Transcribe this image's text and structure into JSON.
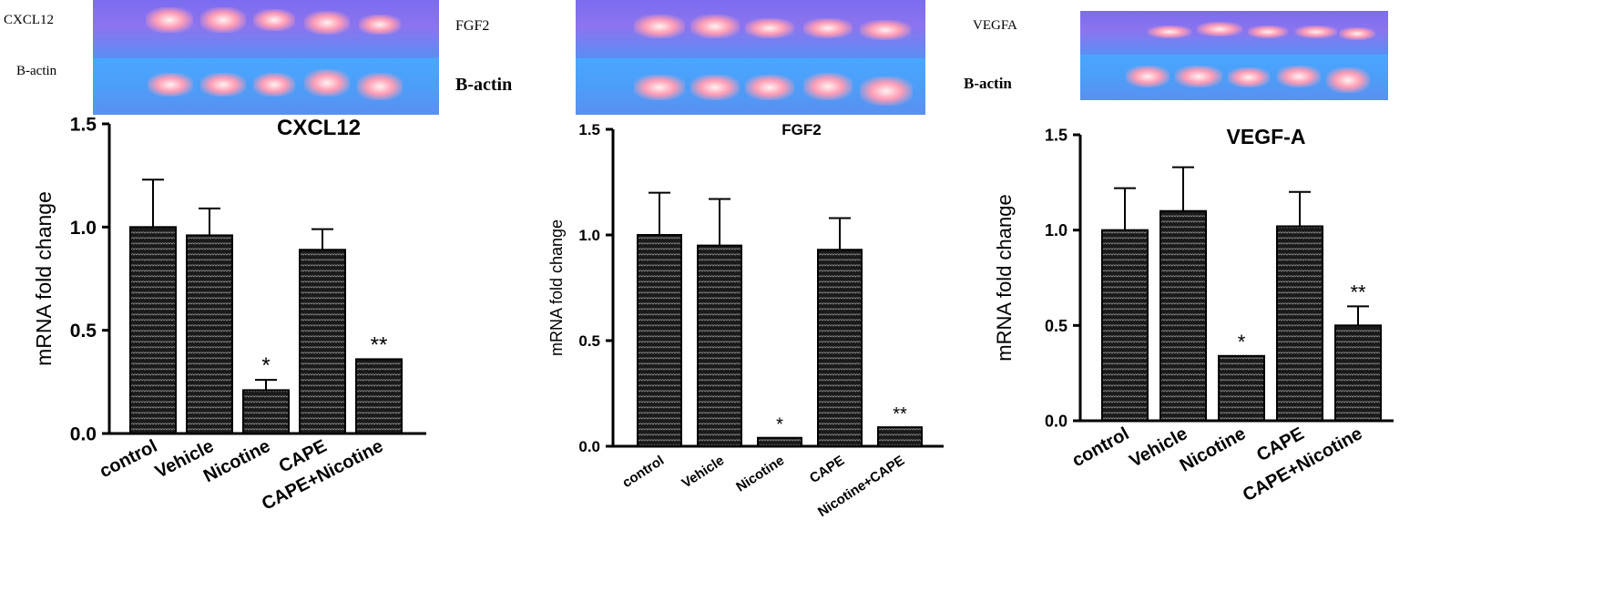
{
  "gels": [
    {
      "target_label": "CXCL12",
      "control_label": "B-actin"
    },
    {
      "target_label": "FGF2",
      "control_label": "B-actin"
    },
    {
      "target_label": "VEGFA",
      "control_label": "B-actin"
    }
  ],
  "colors": {
    "bar_fill": "#1a1a1a",
    "bar_pattern": "#9a9a9a",
    "axis": "#000000",
    "gel_top": "#8270ef",
    "gel_bottom": "#4aa6ff",
    "band": "#ffb0c8"
  },
  "chart_data": [
    {
      "type": "bar",
      "title": "CXCL12",
      "ylabel": "mRNA fold change",
      "xlabel": "",
      "ylim": [
        0,
        1.5
      ],
      "yticks": [
        "0.0",
        "0.5",
        "1.0",
        "1.5"
      ],
      "categories": [
        "control",
        "Vehicle",
        "Nicotine",
        "CAPE",
        "CAPE+Nicotine"
      ],
      "values": [
        1.0,
        0.96,
        0.21,
        0.89,
        0.36
      ],
      "errors": [
        0.23,
        0.13,
        0.05,
        0.1,
        0.0
      ],
      "significance": [
        "",
        "",
        "*",
        "",
        "**"
      ]
    },
    {
      "type": "bar",
      "title": "FGF2",
      "ylabel": "mRNA fold change",
      "xlabel": "",
      "ylim": [
        0,
        1.5
      ],
      "yticks": [
        "0.0",
        "0.5",
        "1.0",
        "1.5"
      ],
      "categories": [
        "control",
        "Vehicle",
        "Nicotine",
        "CAPE",
        "Nicotine+CAPE"
      ],
      "values": [
        1.0,
        0.95,
        0.04,
        0.93,
        0.09
      ],
      "errors": [
        0.2,
        0.22,
        0.0,
        0.15,
        0.0
      ],
      "significance": [
        "",
        "",
        "*",
        "",
        "**"
      ]
    },
    {
      "type": "bar",
      "title": "VEGF-A",
      "ylabel": "mRNA fold change",
      "xlabel": "",
      "ylim": [
        0,
        1.5
      ],
      "yticks": [
        "0.0",
        "0.5",
        "1.0",
        "1.5"
      ],
      "categories": [
        "control",
        "Vehicle",
        "Nicotine",
        "CAPE",
        "CAPE+Nicotine"
      ],
      "values": [
        1.0,
        1.1,
        0.34,
        1.02,
        0.5
      ],
      "errors": [
        0.22,
        0.23,
        0.0,
        0.18,
        0.1
      ],
      "significance": [
        "",
        "",
        "*",
        "",
        "**"
      ]
    }
  ]
}
